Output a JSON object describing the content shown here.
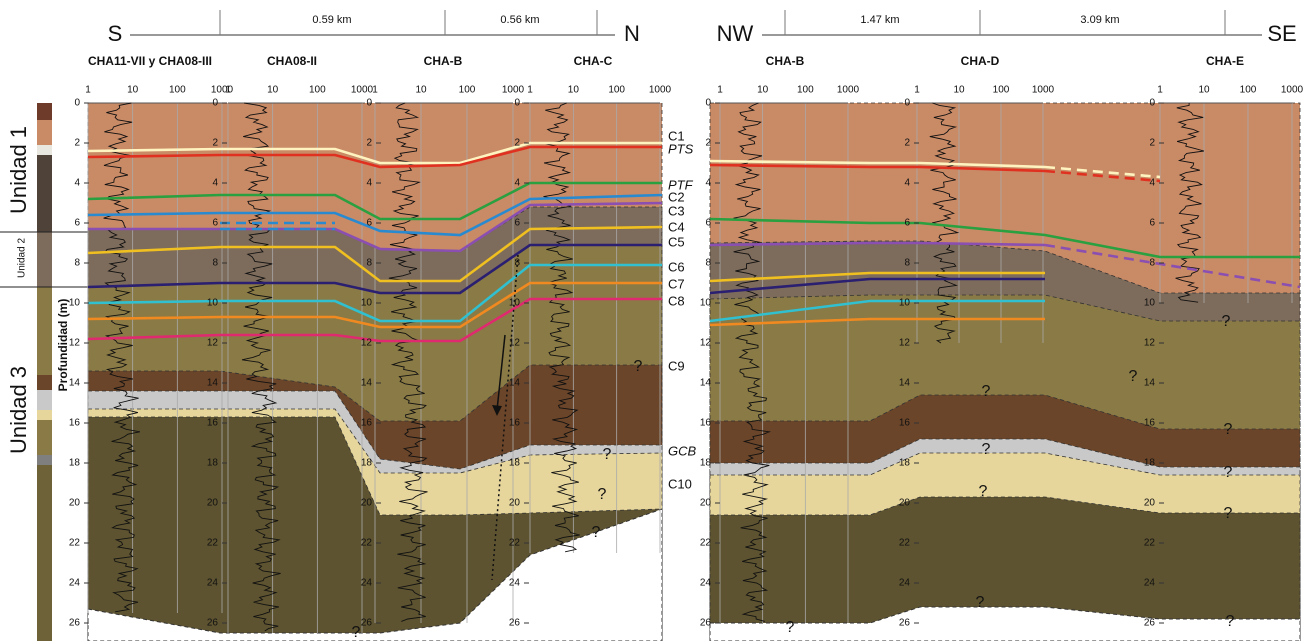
{
  "sections": [
    {
      "direction_start": "S",
      "direction_end": "N",
      "distances": [
        "0.59 km",
        "0.56 km"
      ],
      "wells": [
        "CHA11-VII y CHA08-III",
        "CHA08-II",
        "CHA-B",
        "CHA-C"
      ]
    },
    {
      "direction_start": "NW",
      "direction_end": "SE",
      "distances": [
        "1.47 km",
        "3.09 km"
      ],
      "wells": [
        "CHA-B",
        "CHA-D",
        "CHA-E"
      ]
    }
  ],
  "log_ticks": [
    1,
    10,
    100,
    1000
  ],
  "depth_ticks": [
    0,
    2,
    4,
    6,
    8,
    10,
    12,
    14,
    16,
    18,
    20,
    22,
    24,
    26
  ],
  "depth_axis_label": "Profundidad (m)",
  "units": [
    "Unidad 1",
    "Unidad 2",
    "Unidad 3"
  ],
  "horizon_labels": [
    "C1",
    "PTS",
    "PTF",
    "C2",
    "C3",
    "C4",
    "C5",
    "C6",
    "C7",
    "C8",
    "C9",
    "GCB",
    "C10"
  ],
  "uncertainty_mark": "?"
}
